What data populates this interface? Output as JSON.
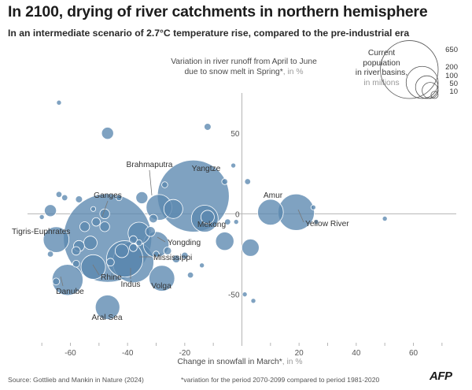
{
  "title": "In 2100, drying of river catchments in northern hemisphere",
  "subtitle": "In an intermediate scenario of 2.7°C temperature rise, compared to the pre-industrial era",
  "y_axis": {
    "line1": "Variation in river runoff from April to June",
    "line2": "due to snow melt in Spring*",
    "unit": ", in %"
  },
  "x_axis": {
    "text": "Change in snowfall in March*",
    "unit": ", in %"
  },
  "legend": {
    "line1": "Current",
    "line2": "population",
    "line3": "in river basins,",
    "unit": "in millions",
    "sizes": [
      650,
      200,
      100,
      50,
      10
    ],
    "size_labels": [
      "650",
      "200",
      "100",
      "50",
      "10"
    ]
  },
  "source": "Source: Gottlieb and Mankin in Nature (2024)",
  "footnote": "*variation for the period 2070-2099 compared to period 1981-2020",
  "logo": "AFP",
  "colors": {
    "bubble": "#5b88b0",
    "bubble_stroke": "#ffffff",
    "axis": "#b5b5b5"
  },
  "chart_data": {
    "type": "scatter",
    "title": "In 2100, drying of river catchments in northern hemisphere",
    "xlabel": "Change in snowfall in March*, in %",
    "ylabel": "Variation in river runoff from April to June due to snow melt in Spring*, in %",
    "xlim": [
      -75,
      75
    ],
    "ylim": [
      -80,
      75
    ],
    "x_ticks": [
      -60,
      -40,
      -20,
      20,
      40,
      60
    ],
    "y_ticks": [
      50,
      0,
      -50
    ],
    "size_meaning": "Current population in river basins, in millions",
    "points": [
      {
        "name": "Ganges",
        "x": -47,
        "y": -15,
        "pop": 650
      },
      {
        "name": "Yangtze",
        "x": -17,
        "y": 11,
        "pop": 430
      },
      {
        "name": "Indus",
        "x": -38,
        "y": -30,
        "pop": 140
      },
      {
        "name": "Mississippi",
        "x": -41,
        "y": -28,
        "pop": 110
      },
      {
        "name": "Yellow River",
        "x": 19,
        "y": 1,
        "pop": 110
      },
      {
        "name": "Tigris-Euphrates",
        "x": -65,
        "y": -16,
        "pop": 55
      },
      {
        "name": "Yongding",
        "x": -30,
        "y": -19,
        "pop": 55
      },
      {
        "name": "Brahmaputra",
        "x": -29,
        "y": 4,
        "pop": 55
      },
      {
        "name": "Danube",
        "x": -61,
        "y": -41,
        "pop": 80
      },
      {
        "name": "Aral Sea",
        "x": -47,
        "y": -58,
        "pop": 50
      },
      {
        "name": "Volga",
        "x": -28,
        "y": -40,
        "pop": 55
      },
      {
        "name": "Rhine",
        "x": -52,
        "y": -33,
        "pop": 50
      },
      {
        "name": "Amur",
        "x": 10,
        "y": 1,
        "pop": 55
      },
      {
        "name": "Mekong",
        "x": -13,
        "y": -3,
        "pop": 60
      },
      {
        "name": "",
        "x": -67,
        "y": 2,
        "pop": 12
      },
      {
        "name": "",
        "x": -36,
        "y": -12,
        "pop": 40
      },
      {
        "name": "",
        "x": -42,
        "y": -23,
        "pop": 15
      },
      {
        "name": "",
        "x": -53,
        "y": -18,
        "pop": 15
      },
      {
        "name": "",
        "x": -24,
        "y": 3,
        "pop": 30
      },
      {
        "name": "",
        "x": -12,
        "y": -2,
        "pop": 15
      },
      {
        "name": "",
        "x": -35,
        "y": 10,
        "pop": 12
      },
      {
        "name": "",
        "x": -6,
        "y": -17,
        "pop": 28
      },
      {
        "name": "",
        "x": 3,
        "y": -21,
        "pop": 25
      },
      {
        "name": "",
        "x": -47,
        "y": 50,
        "pop": 12
      },
      {
        "name": "",
        "x": -57,
        "y": -20,
        "pop": 10
      },
      {
        "name": "",
        "x": -48,
        "y": 0,
        "pop": 8
      },
      {
        "name": "",
        "x": -48,
        "y": -8,
        "pop": 8
      },
      {
        "name": "",
        "x": -55,
        "y": -8,
        "pop": 8
      },
      {
        "name": "",
        "x": -32,
        "y": -11,
        "pop": 8
      },
      {
        "name": "",
        "x": -31,
        "y": -3,
        "pop": 6
      },
      {
        "name": "",
        "x": -51,
        "y": -5,
        "pop": 6
      },
      {
        "name": "",
        "x": -58,
        "y": -23,
        "pop": 6
      },
      {
        "name": "",
        "x": -38,
        "y": -16,
        "pop": 5
      },
      {
        "name": "",
        "x": -38,
        "y": -21,
        "pop": 5
      },
      {
        "name": "",
        "x": -46,
        "y": -30,
        "pop": 5
      },
      {
        "name": "",
        "x": -23,
        "y": -28,
        "pop": 5
      },
      {
        "name": "",
        "x": -26,
        "y": -23,
        "pop": 5
      },
      {
        "name": "",
        "x": -12,
        "y": 54,
        "pop": 4
      },
      {
        "name": "",
        "x": -20,
        "y": -26,
        "pop": 4
      },
      {
        "name": "",
        "x": -57,
        "y": 9,
        "pop": 4
      },
      {
        "name": "",
        "x": -65,
        "y": -42,
        "pop": 4
      },
      {
        "name": "",
        "x": -64,
        "y": 12,
        "pop": 3
      },
      {
        "name": "",
        "x": -62,
        "y": 10,
        "pop": 3
      },
      {
        "name": "",
        "x": -27,
        "y": 18,
        "pop": 3
      },
      {
        "name": "",
        "x": -6,
        "y": 20,
        "pop": 3
      },
      {
        "name": "",
        "x": 2,
        "y": 20,
        "pop": 3
      },
      {
        "name": "",
        "x": -58,
        "y": -31,
        "pop": 4
      },
      {
        "name": "",
        "x": -18,
        "y": -38,
        "pop": 3
      },
      {
        "name": "",
        "x": -43,
        "y": 10,
        "pop": 3
      },
      {
        "name": "",
        "x": -64,
        "y": 69,
        "pop": 2
      },
      {
        "name": "",
        "x": -67,
        "y": -25,
        "pop": 3
      },
      {
        "name": "",
        "x": -5,
        "y": -5,
        "pop": 3
      },
      {
        "name": "",
        "x": -14,
        "y": -32,
        "pop": 2
      },
      {
        "name": "",
        "x": 1,
        "y": -50,
        "pop": 2
      },
      {
        "name": "",
        "x": 25,
        "y": 4,
        "pop": 2
      },
      {
        "name": "",
        "x": 26,
        "y": -5,
        "pop": 2
      },
      {
        "name": "",
        "x": 4,
        "y": -54,
        "pop": 2
      },
      {
        "name": "",
        "x": -2,
        "y": -5,
        "pop": 2
      },
      {
        "name": "",
        "x": -3,
        "y": 30,
        "pop": 2
      },
      {
        "name": "",
        "x": -70,
        "y": -2,
        "pop": 2
      },
      {
        "name": "",
        "x": -36,
        "y": -18,
        "pop": 3
      },
      {
        "name": "",
        "x": -30,
        "y": -25,
        "pop": 3
      },
      {
        "name": "",
        "x": -52,
        "y": 3,
        "pop": 2
      },
      {
        "name": "",
        "x": 50,
        "y": -3,
        "pop": 2
      }
    ]
  }
}
